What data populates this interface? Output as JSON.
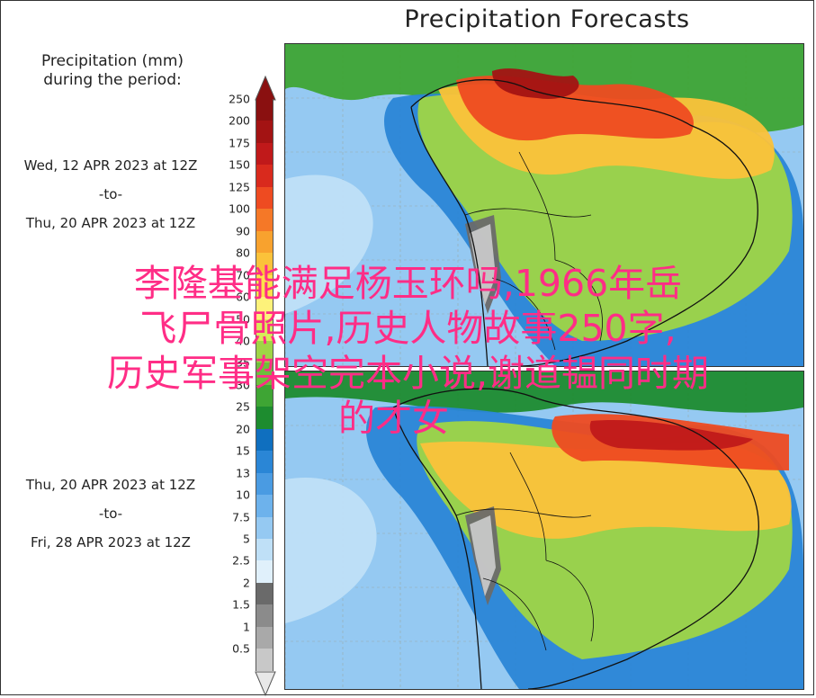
{
  "title": "Precipitation Forecasts",
  "legend": {
    "heading_line1": "Precipitation (mm)",
    "heading_line2": "during the period:",
    "scale": [
      {
        "value": "250",
        "color": "#8a1010"
      },
      {
        "value": "200",
        "color": "#a31313"
      },
      {
        "value": "175",
        "color": "#c0191a"
      },
      {
        "value": "150",
        "color": "#d92a1d"
      },
      {
        "value": "125",
        "color": "#ee4b21"
      },
      {
        "value": "100",
        "color": "#f57827"
      },
      {
        "value": "90",
        "color": "#f8a22e"
      },
      {
        "value": "80",
        "color": "#fbc23a"
      },
      {
        "value": "70",
        "color": "#fde14a"
      },
      {
        "value": "60",
        "color": "#fdf27a"
      },
      {
        "value": "50",
        "color": "#d7ec58"
      },
      {
        "value": "40",
        "color": "#9fd546"
      },
      {
        "value": "35",
        "color": "#6cbf3c"
      },
      {
        "value": "30",
        "color": "#3ea534"
      },
      {
        "value": "25",
        "color": "#1d8c2f"
      },
      {
        "value": "20",
        "color": "#0f6fbf"
      },
      {
        "value": "15",
        "color": "#2a86d6"
      },
      {
        "value": "13",
        "color": "#4a9be2"
      },
      {
        "value": "10",
        "color": "#6db2ec"
      },
      {
        "value": "7.5",
        "color": "#95c9f2"
      },
      {
        "value": "5",
        "color": "#bfe0f7"
      },
      {
        "value": "2.5",
        "color": "#e0f0fb"
      },
      {
        "value": "2",
        "color": "#6a6a6a"
      },
      {
        "value": "1.5",
        "color": "#8b8b8b"
      },
      {
        "value": "1",
        "color": "#a9a9a9"
      },
      {
        "value": "0.5",
        "color": "#c8c8c8"
      }
    ],
    "bottom_color": "#e8e8e8"
  },
  "periods": [
    {
      "start": "Wed, 12 APR 2023 at 12Z",
      "sep": "-to-",
      "end": "Thu, 20 APR 2023 at 12Z"
    },
    {
      "start": "Thu, 20 APR 2023 at 12Z",
      "sep": "-to-",
      "end": "Fri, 28 APR 2023 at 12Z"
    }
  ],
  "overlay_text": [
    "李隆基能满足杨玉环吗,1966年岳",
    "飞尸骨照片,历史人物故事250字,",
    "历史军事架空完本小说,谢道韫同时期",
    "的才女"
  ]
}
